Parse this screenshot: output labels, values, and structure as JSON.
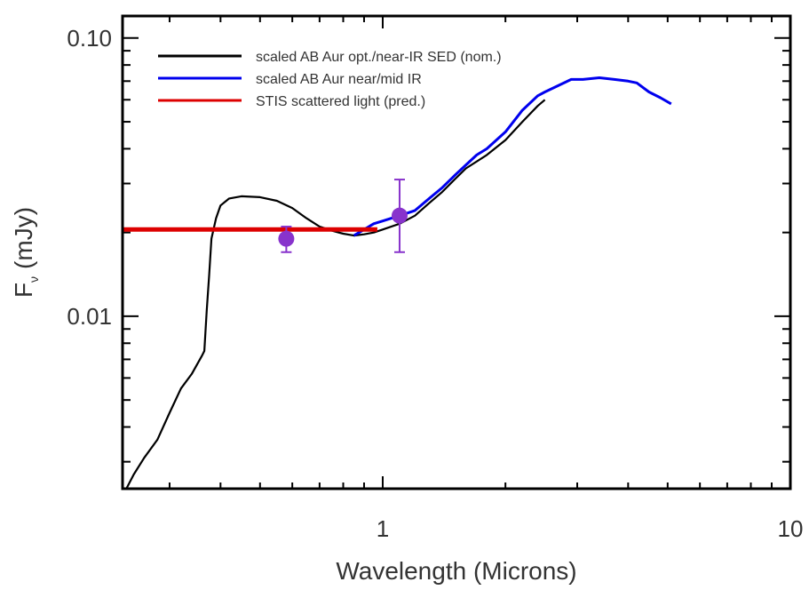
{
  "chart_data": {
    "type": "line",
    "xlabel": "Wavelength (Microns)",
    "ylabel_main": "F",
    "ylabel_sub": "ν",
    "ylabel_unit": "(mJy)",
    "xscale": "log",
    "yscale": "log",
    "xlim": [
      0.23,
      10
    ],
    "ylim": [
      0.0024,
      0.12
    ],
    "xticks": [
      {
        "value": 1,
        "label": "1"
      },
      {
        "value": 10,
        "label": "10"
      }
    ],
    "yticks": [
      {
        "value": 0.01,
        "label": "0.01"
      },
      {
        "value": 0.1,
        "label": "0.10"
      }
    ],
    "legend_position": "top-left",
    "series": [
      {
        "name": "scaled AB Aur opt./near-IR SED (nom.)",
        "color": "#000000",
        "points": [
          [
            0.235,
            0.0024
          ],
          [
            0.245,
            0.0027
          ],
          [
            0.26,
            0.0031
          ],
          [
            0.28,
            0.0036
          ],
          [
            0.3,
            0.0045
          ],
          [
            0.32,
            0.0055
          ],
          [
            0.34,
            0.0062
          ],
          [
            0.36,
            0.0072
          ],
          [
            0.365,
            0.0075
          ],
          [
            0.37,
            0.0105
          ],
          [
            0.375,
            0.014
          ],
          [
            0.38,
            0.019
          ],
          [
            0.39,
            0.0225
          ],
          [
            0.4,
            0.025
          ],
          [
            0.42,
            0.0265
          ],
          [
            0.45,
            0.027
          ],
          [
            0.5,
            0.0268
          ],
          [
            0.55,
            0.026
          ],
          [
            0.6,
            0.0245
          ],
          [
            0.65,
            0.0225
          ],
          [
            0.7,
            0.021
          ],
          [
            0.75,
            0.0203
          ],
          [
            0.8,
            0.0198
          ],
          [
            0.85,
            0.0195
          ],
          [
            0.9,
            0.0197
          ],
          [
            0.95,
            0.02
          ],
          [
            1.0,
            0.0205
          ],
          [
            1.1,
            0.0215
          ],
          [
            1.2,
            0.023
          ],
          [
            1.3,
            0.0255
          ],
          [
            1.4,
            0.028
          ],
          [
            1.5,
            0.031
          ],
          [
            1.6,
            0.034
          ],
          [
            1.8,
            0.038
          ],
          [
            2.0,
            0.043
          ],
          [
            2.2,
            0.05
          ],
          [
            2.4,
            0.057
          ],
          [
            2.5,
            0.06
          ]
        ]
      },
      {
        "name": "scaled AB Aur near/mid IR",
        "color": "#0000ee",
        "points": [
          [
            0.85,
            0.0195
          ],
          [
            0.9,
            0.0205
          ],
          [
            0.95,
            0.0215
          ],
          [
            1.0,
            0.022
          ],
          [
            1.1,
            0.023
          ],
          [
            1.2,
            0.024
          ],
          [
            1.3,
            0.0265
          ],
          [
            1.4,
            0.029
          ],
          [
            1.5,
            0.032
          ],
          [
            1.6,
            0.035
          ],
          [
            1.7,
            0.038
          ],
          [
            1.8,
            0.04
          ],
          [
            2.0,
            0.046
          ],
          [
            2.2,
            0.055
          ],
          [
            2.4,
            0.062
          ],
          [
            2.5,
            0.064
          ],
          [
            2.9,
            0.071
          ],
          [
            3.1,
            0.071
          ],
          [
            3.4,
            0.072
          ],
          [
            3.7,
            0.071
          ],
          [
            4.0,
            0.07
          ],
          [
            4.2,
            0.069
          ],
          [
            4.5,
            0.064
          ],
          [
            4.8,
            0.061
          ],
          [
            5.1,
            0.058
          ]
        ]
      },
      {
        "name": "STIS scattered light (pred.)",
        "color": "#dd0000",
        "points": [
          [
            0.23,
            0.0205
          ],
          [
            0.97,
            0.0205
          ]
        ]
      }
    ],
    "data_points": [
      {
        "x": 0.58,
        "y": 0.019,
        "yerr_low": 0.017,
        "yerr_high": 0.021,
        "color": "#8833cc"
      },
      {
        "x": 1.1,
        "y": 0.023,
        "yerr_low": 0.017,
        "yerr_high": 0.031,
        "color": "#8833cc"
      }
    ]
  }
}
